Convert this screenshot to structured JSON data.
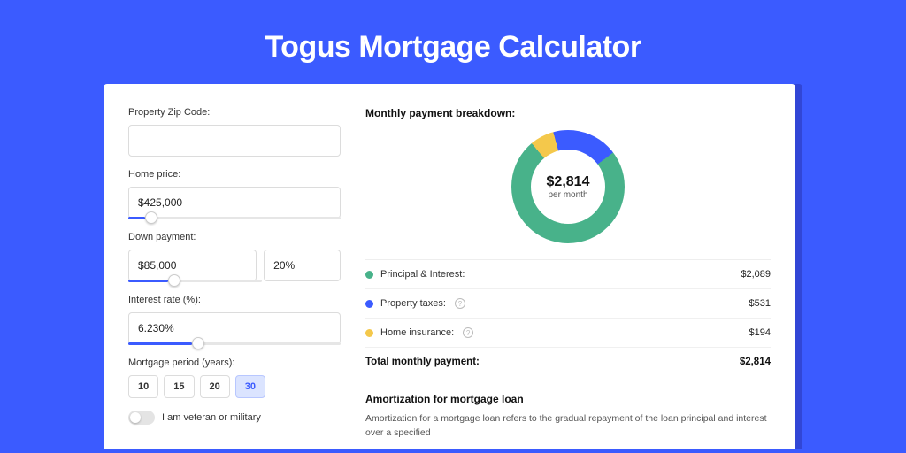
{
  "page": {
    "title": "Togus Mortgage Calculator",
    "background_color": "#3b5bff",
    "shadow_color": "#3146d6",
    "card_bg": "#ffffff"
  },
  "form": {
    "zip": {
      "label": "Property Zip Code:",
      "value": ""
    },
    "home_price": {
      "label": "Home price:",
      "value": "$425,000",
      "slider_pct": 8
    },
    "down_payment": {
      "label": "Down payment:",
      "amount": "$85,000",
      "pct": "20%",
      "slider_pct": 20
    },
    "interest_rate": {
      "label": "Interest rate (%):",
      "value": "6.230%",
      "slider_pct": 30
    },
    "period": {
      "label": "Mortgage period (years):",
      "options": [
        "10",
        "15",
        "20",
        "30"
      ],
      "selected": "30"
    },
    "veteran": {
      "label": "I am veteran or military",
      "value": false
    }
  },
  "breakdown": {
    "heading": "Monthly payment breakdown:",
    "donut": {
      "amount": "$2,814",
      "sub": "per month",
      "slices": [
        {
          "label": "Principal & Interest",
          "color": "#48b28a",
          "pct": 74.2
        },
        {
          "label": "Property taxes",
          "color": "#3b5bff",
          "pct": 18.9
        },
        {
          "label": "Home insurance",
          "color": "#f4c84b",
          "pct": 6.9
        }
      ]
    },
    "rows": [
      {
        "label": "Principal & Interest:",
        "color": "#48b28a",
        "value": "$2,089",
        "help": false
      },
      {
        "label": "Property taxes:",
        "color": "#3b5bff",
        "value": "$531",
        "help": true
      },
      {
        "label": "Home insurance:",
        "color": "#f4c84b",
        "value": "$194",
        "help": true
      }
    ],
    "total": {
      "label": "Total monthly payment:",
      "value": "$2,814"
    }
  },
  "amortization": {
    "heading": "Amortization for mortgage loan",
    "text": "Amortization for a mortgage loan refers to the gradual repayment of the loan principal and interest over a specified"
  },
  "input_border": "#dcdcdc",
  "slider_fill_color": "#3b5bff"
}
